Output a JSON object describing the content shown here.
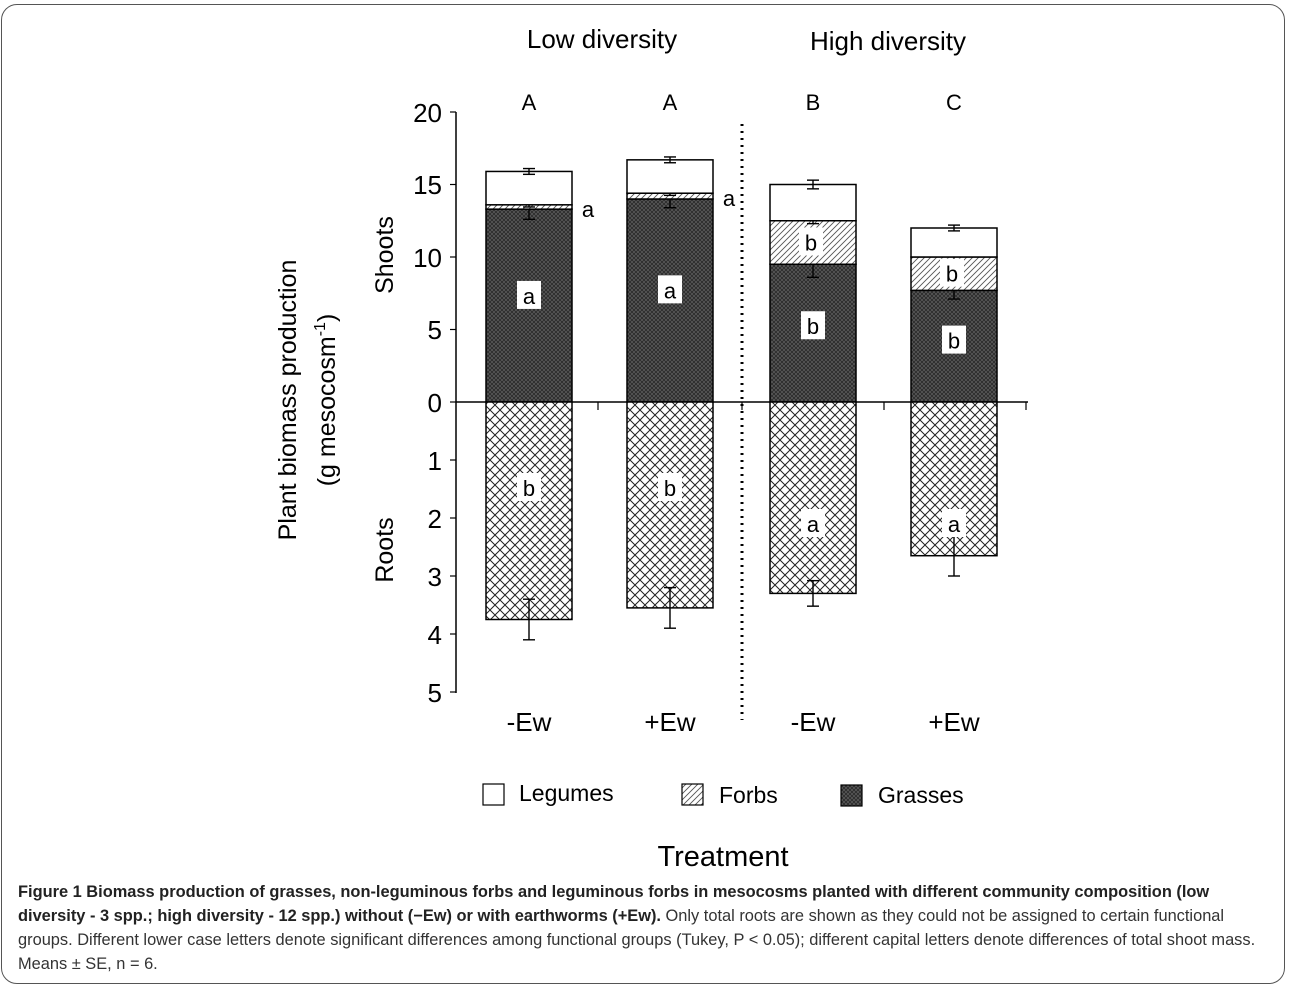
{
  "chart_data": {
    "type": "bar",
    "stacked": true,
    "group_labels": [
      "Low diversity",
      "High diversity"
    ],
    "categories": [
      "-Ew",
      "+Ew",
      "-Ew",
      "+Ew"
    ],
    "total_letters": [
      "A",
      "A",
      "B",
      "C"
    ],
    "shoot_axis_label": "Shoots",
    "root_axis_label": "Roots",
    "ylabel_line1": "Plant biomass production",
    "ylabel_line2_prefix": "(g mesocosm",
    "ylabel_sup": "-1",
    "ylabel_line2_suffix": ")",
    "xlabel": "Treatment",
    "shoot_ylim": [
      0,
      20
    ],
    "root_ylim": [
      0,
      5
    ],
    "shoot_ticks": [
      "20",
      "15",
      "10",
      "5",
      "0"
    ],
    "root_ticks": [
      "1",
      "2",
      "3",
      "4",
      "5"
    ],
    "grid": false,
    "legend_position": "bottom",
    "series": [
      {
        "name": "Grasses",
        "part": "shoot",
        "values": [
          13.3,
          14.0,
          9.5,
          7.7
        ],
        "errors": [
          0.7,
          0.6,
          0.9,
          0.6
        ],
        "letters": [
          "a",
          "a",
          "b",
          "b"
        ]
      },
      {
        "name": "Forbs",
        "part": "shoot",
        "values": [
          0.3,
          0.4,
          3.0,
          2.3
        ],
        "errors": [
          0.15,
          0.15,
          0.2,
          0.2
        ],
        "letters": [
          "a",
          "a",
          "b",
          "b"
        ]
      },
      {
        "name": "Legumes",
        "part": "shoot",
        "values": [
          2.3,
          2.3,
          2.5,
          2.0
        ],
        "errors": [
          0.2,
          0.2,
          0.3,
          0.2
        ],
        "letters": [
          "",
          "",
          "",
          ""
        ]
      },
      {
        "name": "Roots",
        "part": "root",
        "values": [
          3.75,
          3.55,
          3.3,
          2.65
        ],
        "errors": [
          0.35,
          0.35,
          0.22,
          0.35
        ],
        "letters": [
          "b",
          "b",
          "a",
          "a"
        ]
      }
    ],
    "legend": [
      {
        "name": "Legumes",
        "pattern": "white"
      },
      {
        "name": "Forbs",
        "pattern": "hatch"
      },
      {
        "name": "Grasses",
        "pattern": "dark-crosshatch"
      }
    ]
  },
  "colors": {
    "grasses": "#555555",
    "legumes": "#ffffff",
    "roots": "#ffffff",
    "stroke": "#000000"
  },
  "caption": {
    "lead": "Figure 1 Biomass production of grasses, non-leguminous forbs and leguminous forbs in mesocosms planted with different community composition (low diversity - 3 spp.; high diversity - 12 spp.) without (−Ew) or with earthworms (+Ew).",
    "body": " Only total roots are shown as they could not be assigned to certain functional groups. Different lower case letters denote significant differences among functional groups (Tukey, P < 0.05); different capital letters denote differences of total shoot mass. Means ± SE, n = 6."
  }
}
